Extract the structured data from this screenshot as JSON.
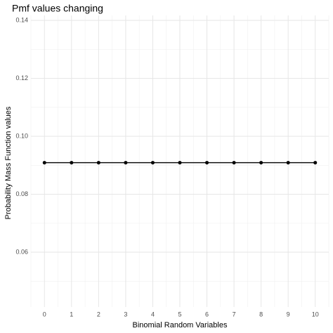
{
  "chart_data": {
    "type": "line",
    "title": "Pmf values changing",
    "x_label": "Binomial Random Variables",
    "y_label": "Probability Mass Function values",
    "x": [
      0,
      1,
      2,
      3,
      4,
      5,
      6,
      7,
      8,
      9,
      10
    ],
    "series": [
      {
        "color": "#000000",
        "values": [
          0.0909,
          0.0909,
          0.0909,
          0.0909,
          0.0909,
          0.0909,
          0.0909,
          0.0909,
          0.0909,
          0.0909,
          0.0909
        ]
      }
    ],
    "xlim": [
      -0.5,
      10.5
    ],
    "xticks": [
      0,
      1,
      2,
      3,
      4,
      5,
      6,
      7,
      8,
      9,
      10
    ],
    "ylim": [
      0.0411,
      0.1417
    ],
    "yticks": [
      0.06,
      0.08,
      {
        "value": 0.1,
        "label": "0.10"
      },
      0.12,
      0.14
    ],
    "grid": true
  }
}
